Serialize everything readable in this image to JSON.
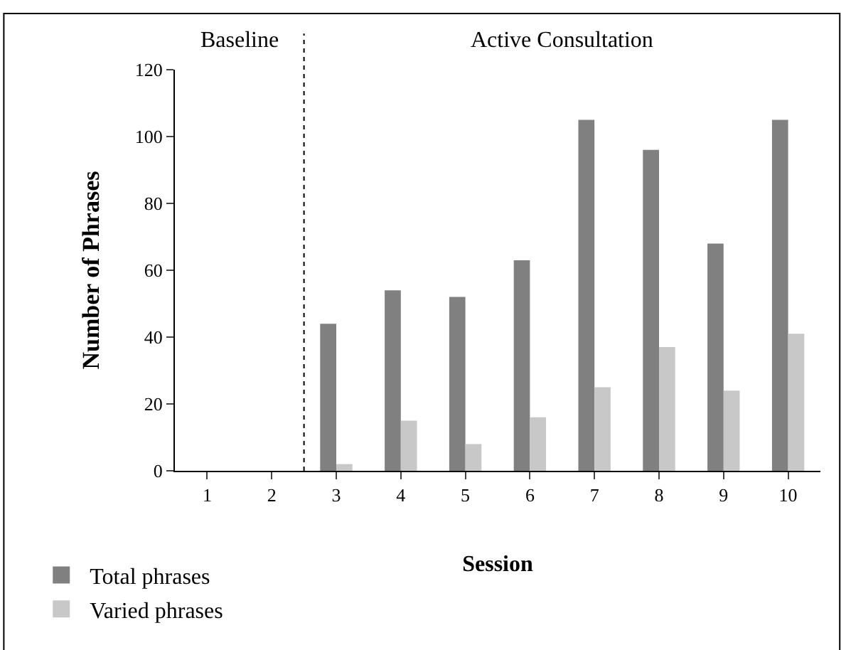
{
  "chart_data": {
    "type": "bar",
    "xlabel": "Session",
    "ylabel": "Number of Phrases",
    "x": [
      1,
      2,
      3,
      4,
      5,
      6,
      7,
      8,
      9,
      10
    ],
    "xlim": [
      0.5,
      10.5
    ],
    "xticks": [
      1,
      2,
      3,
      4,
      5,
      6,
      7,
      8,
      9,
      10
    ],
    "ylim": [
      0,
      120
    ],
    "yticks": [
      0,
      20,
      40,
      60,
      80,
      100,
      120
    ],
    "series": [
      {
        "name": "Total phrases",
        "color": "#808080",
        "values": [
          0,
          0,
          44,
          54,
          52,
          63,
          105,
          96,
          68,
          105
        ]
      },
      {
        "name": "Varied phrases",
        "color": "#c8c8c8",
        "values": [
          0,
          0,
          2,
          15,
          8,
          16,
          25,
          37,
          24,
          41
        ]
      }
    ],
    "ref_lines": [
      {
        "axis": "x",
        "value": 2.5,
        "line_style": "dotted",
        "color": "#000000"
      }
    ],
    "annotations": [
      "Baseline",
      "Active Consultation"
    ],
    "legend": "bottom left"
  }
}
